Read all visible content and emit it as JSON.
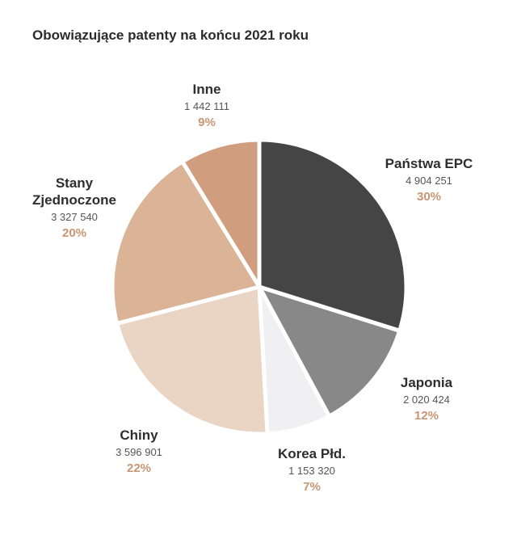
{
  "chart_data": {
    "type": "pie",
    "title": "Obowiązujące patenty na końcu 2021 roku",
    "slices": [
      {
        "label": "Państwa EPC",
        "value_text": "4 904 251",
        "value": 4904251,
        "percent_text": "30%",
        "percent": 30,
        "color": "#454545"
      },
      {
        "label": "Japonia",
        "value_text": "2 020 424",
        "value": 2020424,
        "percent_text": "12%",
        "percent": 12,
        "color": "#888888"
      },
      {
        "label": "Korea Płd.",
        "value_text": "1 153 320",
        "value": 1153320,
        "percent_text": "7%",
        "percent": 7,
        "color": "#f0eff1"
      },
      {
        "label": "Chiny",
        "value_text": "3 596 901",
        "value": 3596901,
        "percent_text": "22%",
        "percent": 22,
        "color": "#ead5c5"
      },
      {
        "label": "Stany Zjednoczone",
        "value_text": "3 327 540",
        "value": 3327540,
        "percent_text": "20%",
        "percent": 20,
        "color": "#dbb396"
      },
      {
        "label": "Inne",
        "value_text": "1 442 111",
        "value": 1442111,
        "percent_text": "9%",
        "percent": 9,
        "color": "#d09d7e"
      }
    ],
    "start_angle": "12 o'clock",
    "direction": "clockwise",
    "slice_separator_color": "#ffffff"
  }
}
